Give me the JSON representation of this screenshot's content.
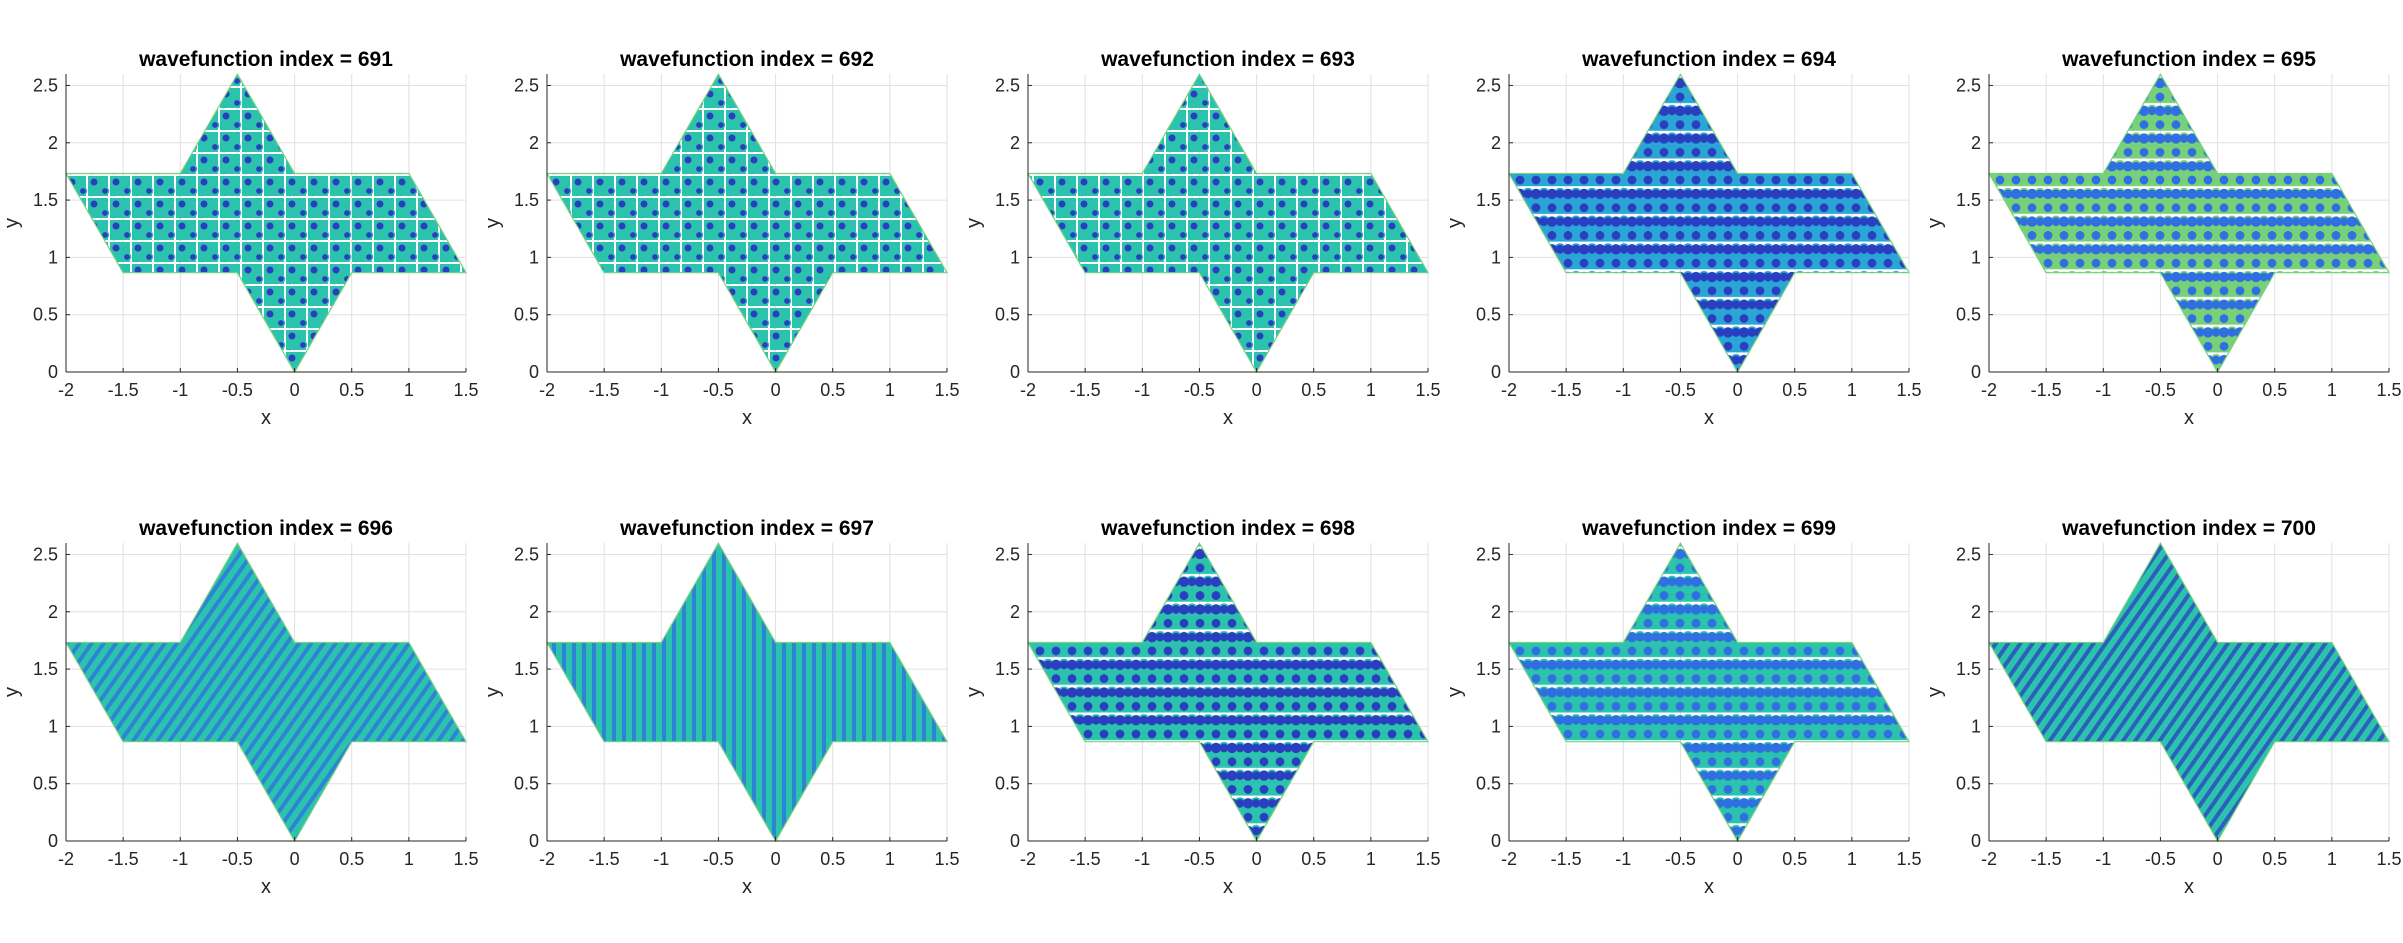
{
  "figure": {
    "panel_title_prefix": "wavefunction index = "
  },
  "colors": {
    "axis": "#262626",
    "grid": "#e0e0e0",
    "title": "#000000",
    "colormap": [
      "#2a3fbf",
      "#2f6fe0",
      "#2aa5d6",
      "#2cc3ae",
      "#78d17a",
      "#f4e21b"
    ]
  },
  "chart_data": [
    {
      "type": "heatmap",
      "title": "wavefunction index = 691",
      "xlabel": "x",
      "ylabel": "y",
      "xlim": [
        -2,
        1.5
      ],
      "ylim": [
        0,
        2.6
      ],
      "xticks": [
        "-2",
        "-1.5",
        "-1",
        "-0.5",
        "0",
        "0.5",
        "1",
        "1.5"
      ],
      "yticks": [
        "0",
        "0.5",
        "1",
        "1.5",
        "2",
        "2.5"
      ],
      "grid": true,
      "domain": "hexagram",
      "pattern": "mixed-cells",
      "background_level": 0.5,
      "spot_level": 0.05
    },
    {
      "type": "heatmap",
      "title": "wavefunction index = 692",
      "xlabel": "x",
      "ylabel": "y",
      "xlim": [
        -2,
        1.5
      ],
      "ylim": [
        0,
        2.6
      ],
      "xticks": [
        "-2",
        "-1.5",
        "-1",
        "-0.5",
        "0",
        "0.5",
        "1",
        "1.5"
      ],
      "yticks": [
        "0",
        "0.5",
        "1",
        "1.5",
        "2",
        "2.5"
      ],
      "grid": true,
      "domain": "hexagram",
      "pattern": "mixed-cells",
      "background_level": 0.5,
      "spot_level": 0.05
    },
    {
      "type": "heatmap",
      "title": "wavefunction index = 693",
      "xlabel": "x",
      "ylabel": "y",
      "xlim": [
        -2,
        1.5
      ],
      "ylim": [
        0,
        2.6
      ],
      "xticks": [
        "-2",
        "-1.5",
        "-1",
        "-0.5",
        "0",
        "0.5",
        "1",
        "1.5"
      ],
      "yticks": [
        "0",
        "0.5",
        "1",
        "1.5",
        "2",
        "2.5"
      ],
      "grid": true,
      "domain": "hexagram",
      "pattern": "mixed-cells",
      "background_level": 0.5,
      "spot_level": 0.05
    },
    {
      "type": "heatmap",
      "title": "wavefunction index = 694",
      "xlabel": "x",
      "ylabel": "y",
      "xlim": [
        -2,
        1.5
      ],
      "ylim": [
        0,
        2.6
      ],
      "xticks": [
        "-2",
        "-1.5",
        "-1",
        "-0.5",
        "0",
        "0.5",
        "1",
        "1.5"
      ],
      "yticks": [
        "0",
        "0.5",
        "1",
        "1.5",
        "2",
        "2.5"
      ],
      "grid": true,
      "domain": "hexagram",
      "pattern": "hexagonal-lattice",
      "background_level": 0.35,
      "spot_level": 0.0
    },
    {
      "type": "heatmap",
      "title": "wavefunction index = 695",
      "xlabel": "x",
      "ylabel": "y",
      "xlim": [
        -2,
        1.5
      ],
      "ylim": [
        0,
        2.6
      ],
      "xticks": [
        "-2",
        "-1.5",
        "-1",
        "-0.5",
        "0",
        "0.5",
        "1",
        "1.5"
      ],
      "yticks": [
        "0",
        "0.5",
        "1",
        "1.5",
        "2",
        "2.5"
      ],
      "grid": true,
      "domain": "hexagram",
      "pattern": "hexagonal-lattice",
      "background_level": 0.88,
      "spot_level": 0.12
    },
    {
      "type": "heatmap",
      "title": "wavefunction index = 696",
      "xlabel": "x",
      "ylabel": "y",
      "xlim": [
        -2,
        1.5
      ],
      "ylim": [
        0,
        2.6
      ],
      "xticks": [
        "-2",
        "-1.5",
        "-1",
        "-0.5",
        "0",
        "0.5",
        "1",
        "1.5"
      ],
      "yticks": [
        "0",
        "0.5",
        "1",
        "1.5",
        "2",
        "2.5"
      ],
      "grid": true,
      "domain": "hexagram",
      "pattern": "diagonal-stripes",
      "background_level": 0.5,
      "spot_level": 0.1
    },
    {
      "type": "heatmap",
      "title": "wavefunction index = 697",
      "xlabel": "x",
      "ylabel": "y",
      "xlim": [
        -2,
        1.5
      ],
      "ylim": [
        0,
        2.6
      ],
      "xticks": [
        "-2",
        "-1.5",
        "-1",
        "-0.5",
        "0",
        "0.5",
        "1",
        "1.5"
      ],
      "yticks": [
        "0",
        "0.5",
        "1",
        "1.5",
        "2",
        "2.5"
      ],
      "grid": true,
      "domain": "hexagram",
      "pattern": "vertical-stripes",
      "background_level": 0.5,
      "spot_level": 0.1
    },
    {
      "type": "heatmap",
      "title": "wavefunction index = 698",
      "xlabel": "x",
      "ylabel": "y",
      "xlim": [
        -2,
        1.5
      ],
      "ylim": [
        0,
        2.6
      ],
      "xticks": [
        "-2",
        "-1.5",
        "-1",
        "-0.5",
        "0",
        "0.5",
        "1",
        "1.5"
      ],
      "yticks": [
        "0",
        "0.5",
        "1",
        "1.5",
        "2",
        "2.5"
      ],
      "grid": true,
      "domain": "hexagram",
      "pattern": "hexagonal-lattice",
      "background_level": 0.5,
      "spot_level": 0.05
    },
    {
      "type": "heatmap",
      "title": "wavefunction index = 699",
      "xlabel": "x",
      "ylabel": "y",
      "xlim": [
        -2,
        1.5
      ],
      "ylim": [
        0,
        2.6
      ],
      "xticks": [
        "-2",
        "-1.5",
        "-1",
        "-0.5",
        "0",
        "0.5",
        "1",
        "1.5"
      ],
      "yticks": [
        "0",
        "0.5",
        "1",
        "1.5",
        "2",
        "2.5"
      ],
      "grid": true,
      "domain": "hexagram",
      "pattern": "hexagonal-lattice",
      "background_level": 0.5,
      "spot_level": 0.1
    },
    {
      "type": "heatmap",
      "title": "wavefunction index = 700",
      "xlabel": "x",
      "ylabel": "y",
      "xlim": [
        -2,
        1.5
      ],
      "ylim": [
        0,
        2.6
      ],
      "xticks": [
        "-2",
        "-1.5",
        "-1",
        "-0.5",
        "0",
        "0.5",
        "1",
        "1.5"
      ],
      "yticks": [
        "0",
        "0.5",
        "1",
        "1.5",
        "2",
        "2.5"
      ],
      "grid": true,
      "domain": "hexagram",
      "pattern": "diagonal-stripes",
      "background_level": 0.5,
      "spot_level": 0.05
    }
  ]
}
